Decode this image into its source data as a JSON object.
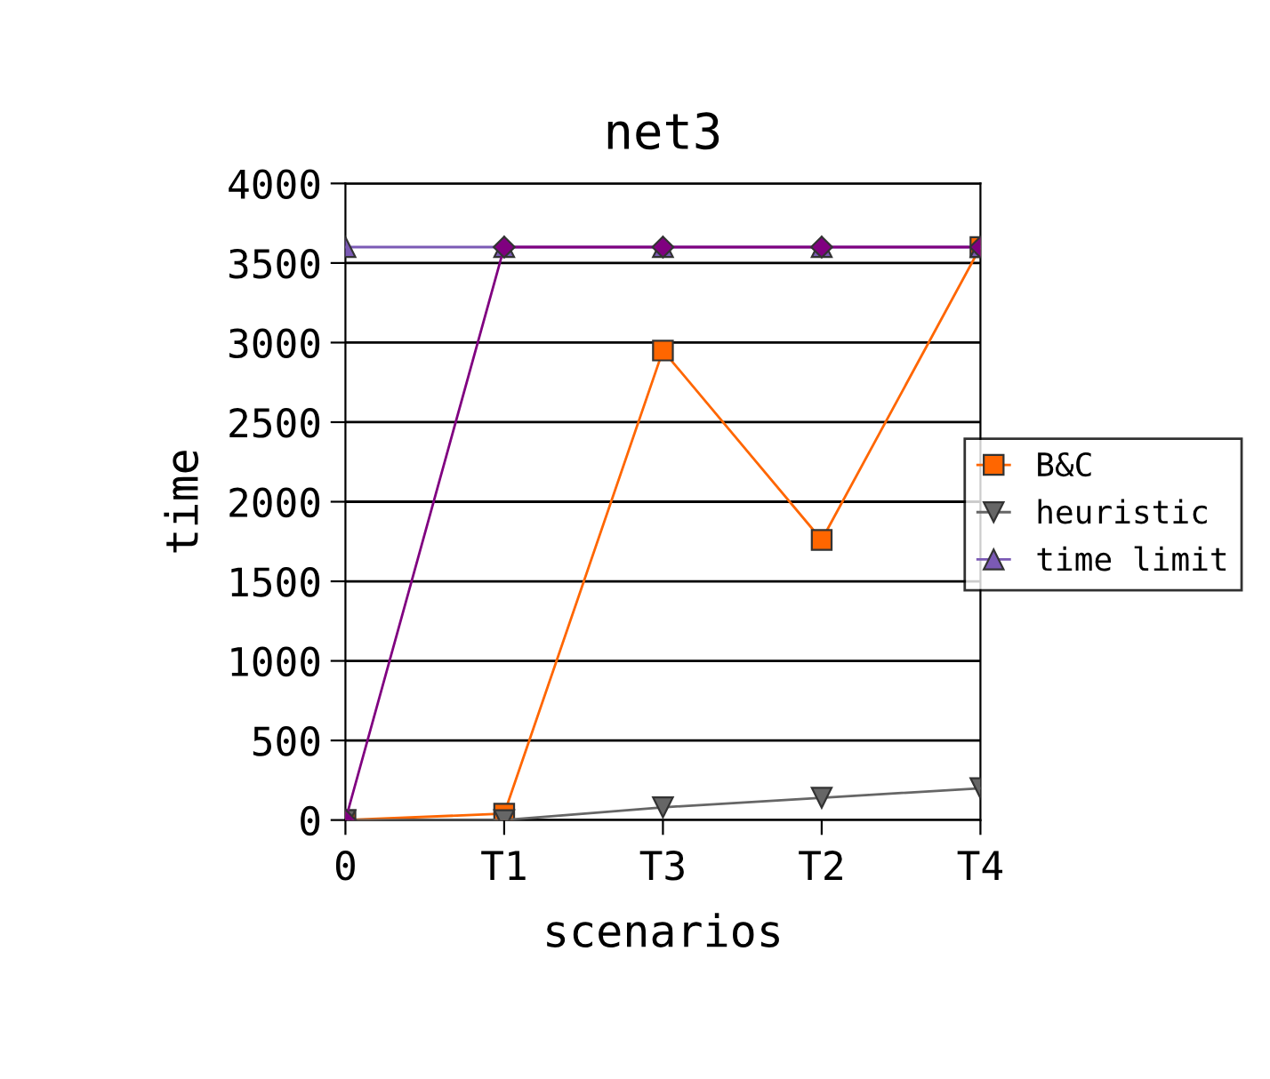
{
  "chart_data": {
    "type": "line",
    "title": "net3",
    "xlabel": "scenarios",
    "ylabel": "time",
    "categories": [
      "0",
      "T1",
      "T3",
      "T2",
      "T4"
    ],
    "ylim": [
      0,
      4000
    ],
    "yticks": [
      0,
      500,
      1000,
      1500,
      2000,
      2500,
      3000,
      3500,
      4000
    ],
    "grid": "y",
    "legend": "right",
    "line_style": "solid",
    "series": [
      {
        "name": "B&C",
        "color": "#ff6600",
        "marker": "square",
        "values": [
          0,
          40,
          2950,
          1760,
          3600
        ]
      },
      {
        "name": "heuristic",
        "color": "#666666",
        "marker": "triangle_down",
        "values": [
          0,
          0,
          80,
          140,
          200
        ]
      },
      {
        "name": "time limit",
        "color": "#7b5ab5",
        "marker": "triangle",
        "values": [
          3600,
          3600,
          3600,
          3600,
          3600
        ]
      },
      {
        "color": "#800080",
        "marker": "diamond",
        "values": [
          0,
          3600,
          3600,
          3600,
          3600
        ]
      }
    ]
  }
}
